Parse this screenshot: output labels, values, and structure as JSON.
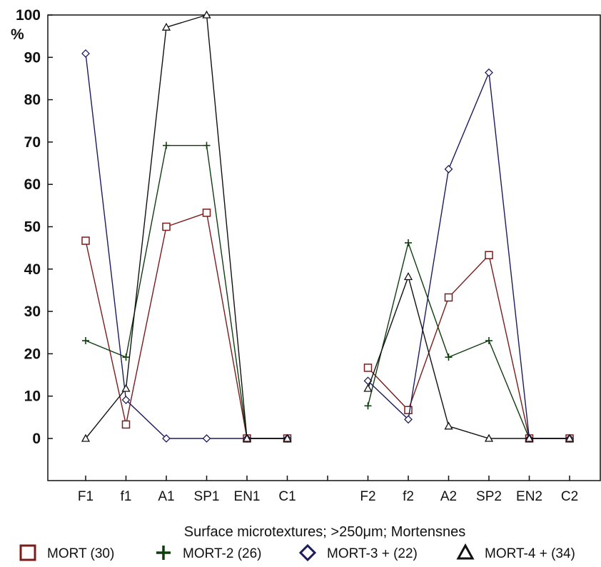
{
  "chart_data": {
    "type": "line",
    "xlabel": "Surface microtextures; >250μm; Mortensnes",
    "ylabel": "%",
    "ylim": [
      0,
      100
    ],
    "yticks": [
      0,
      10,
      20,
      30,
      40,
      50,
      60,
      70,
      80,
      90,
      100
    ],
    "categories": [
      "F1",
      "f1",
      "A1",
      "SP1",
      "EN1",
      "C1",
      "F2",
      "f2",
      "A2",
      "SP2",
      "EN2",
      "C2"
    ],
    "groups": [
      [
        "F1",
        "f1",
        "A1",
        "SP1",
        "EN1",
        "C1"
      ],
      [
        "F2",
        "f2",
        "A2",
        "SP2",
        "EN2",
        "C2"
      ]
    ],
    "grid": false,
    "legend_position": "bottom",
    "series": [
      {
        "name": "MORT (30)",
        "marker": "square",
        "color": "#7a1c1c",
        "values": [
          46.7,
          3.3,
          50.0,
          53.3,
          0,
          0,
          16.7,
          6.7,
          33.3,
          43.3,
          0,
          0
        ]
      },
      {
        "name": "MORT-2 (26)",
        "marker": "plus",
        "color": "#0f3d0f",
        "values": [
          23.1,
          19.2,
          69.2,
          69.2,
          0,
          0,
          7.7,
          46.2,
          19.2,
          23.1,
          0,
          0
        ]
      },
      {
        "name": "MORT-3 + (22)",
        "marker": "diamond",
        "color": "#1c1c5c",
        "values": [
          90.9,
          9.1,
          0,
          0,
          0,
          0,
          13.6,
          4.5,
          63.6,
          86.4,
          0,
          0
        ]
      },
      {
        "name": "MORT-4 + (34)",
        "marker": "triangle",
        "color": "#111111",
        "values": [
          0,
          11.8,
          97.1,
          100,
          0,
          0,
          11.8,
          38.2,
          2.9,
          0,
          0,
          0
        ]
      }
    ]
  }
}
